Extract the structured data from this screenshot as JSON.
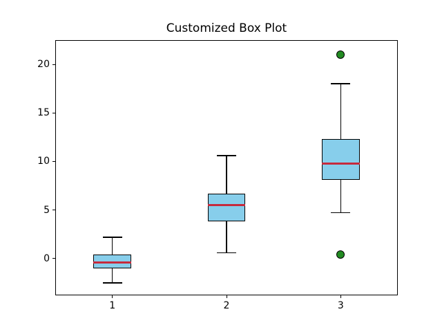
{
  "title": "Customized Box Plot",
  "chart_data": {
    "type": "boxplot",
    "title": "Customized Box Plot",
    "xlabel": "",
    "ylabel": "",
    "x_ticks": [
      1,
      2,
      3
    ],
    "y_ticks": [
      0,
      5,
      10,
      15,
      20
    ],
    "xlim": [
      0.5,
      3.5
    ],
    "ylim": [
      -3.8,
      22.5
    ],
    "grid": false,
    "legend": "none",
    "box_width": 0.33,
    "cap_width": 0.17,
    "boxes": [
      {
        "position": 1,
        "whislo": -2.5,
        "q1": -1.0,
        "med": -0.4,
        "q3": 0.4,
        "whishi": 2.2,
        "fliers": []
      },
      {
        "position": 2,
        "whislo": 0.6,
        "q1": 3.8,
        "med": 5.5,
        "q3": 6.7,
        "whishi": 10.6,
        "fliers": []
      },
      {
        "position": 3,
        "whislo": 4.7,
        "q1": 8.1,
        "med": 9.8,
        "q3": 12.3,
        "whishi": 18.0,
        "fliers": [
          0.4,
          21.0
        ]
      }
    ],
    "colors": {
      "box_fill": "#87CEEB",
      "box_edge": "#000000",
      "median": "#C62A3C",
      "whisker": "#000000",
      "cap": "#000000",
      "flier_fill": "#228B22",
      "flier_edge": "#000000",
      "background": "#ffffff",
      "text": "#000000"
    }
  }
}
